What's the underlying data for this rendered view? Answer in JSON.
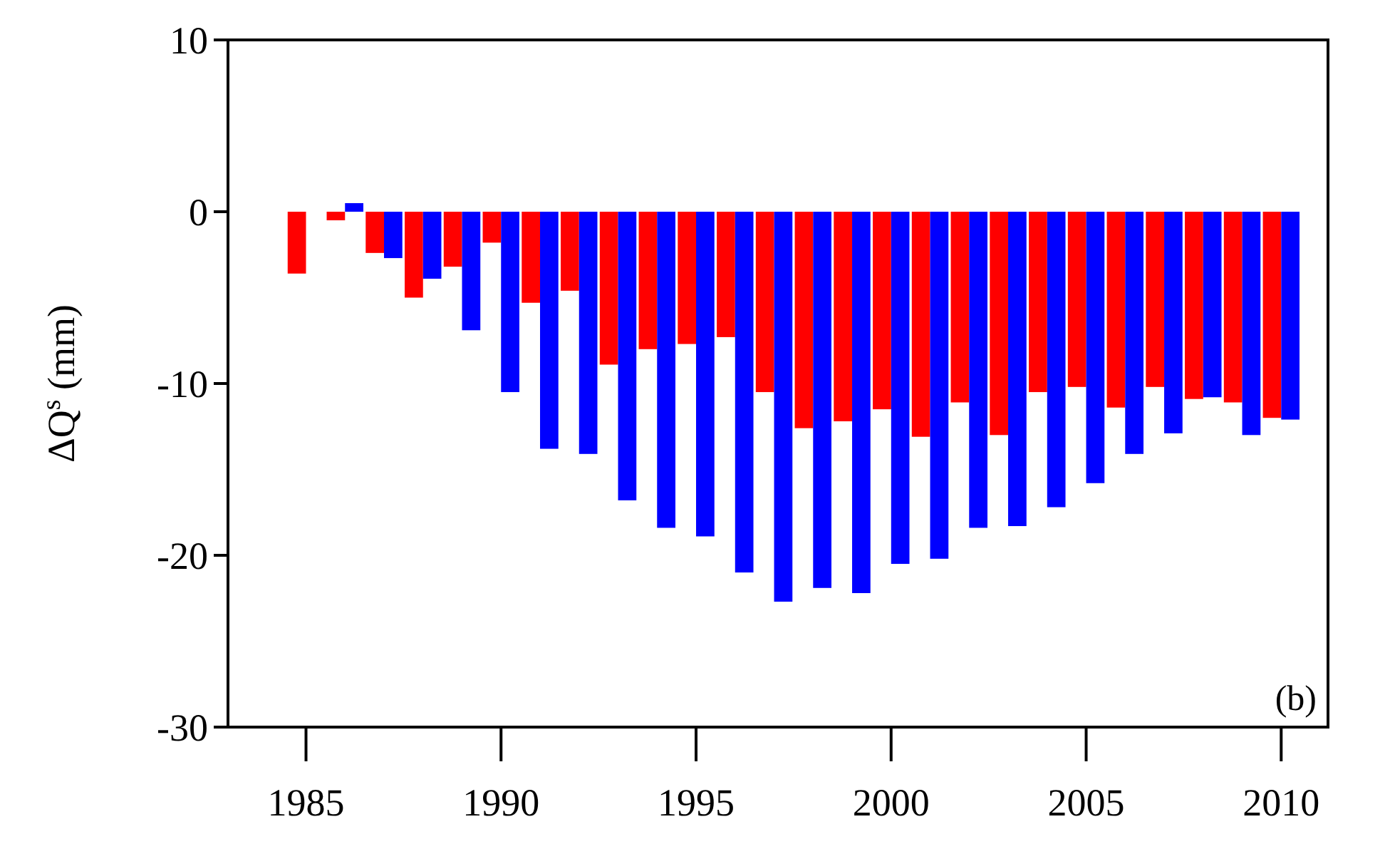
{
  "chart_data": {
    "type": "bar",
    "ylabel": "ΔQ$^{s}$ (mm)",
    "annotations": [
      "(b)"
    ],
    "x": [
      1985,
      1986,
      1987,
      1988,
      1989,
      1990,
      1991,
      1992,
      1993,
      1994,
      1995,
      1996,
      1997,
      1998,
      1999,
      2000,
      2001,
      2002,
      2003,
      2004,
      2005,
      2006,
      2007,
      2008,
      2009,
      2010
    ],
    "series": [
      {
        "color": "#ff0000",
        "values": [
          -3.6,
          -0.5,
          -2.4,
          -5.0,
          -3.2,
          -1.8,
          -5.3,
          -4.6,
          -8.9,
          -8.0,
          -7.7,
          -7.3,
          -10.5,
          -12.6,
          -12.2,
          -11.5,
          -13.1,
          -11.1,
          -13.0,
          -10.5,
          -10.2,
          -11.4,
          -10.2,
          -10.9,
          -11.1,
          -12.0
        ]
      },
      {
        "color": "#0000ff",
        "values": [
          null,
          0.5,
          -2.7,
          -3.9,
          -6.9,
          -10.5,
          -13.8,
          -14.1,
          -16.8,
          -18.4,
          -18.9,
          -21.0,
          -22.7,
          -21.9,
          -22.2,
          -20.5,
          -20.2,
          -18.4,
          -18.3,
          -17.2,
          -15.8,
          -14.1,
          -12.9,
          -10.8,
          -13.0,
          -12.1
        ]
      }
    ],
    "xlim": [
      1983,
      2011.2
    ],
    "xticks": [
      1985,
      1990,
      1995,
      2000,
      2005,
      2010
    ],
    "ylim": [
      -30,
      10
    ],
    "yticks": [
      -30,
      -20,
      -10,
      0,
      10
    ],
    "grid": false
  }
}
